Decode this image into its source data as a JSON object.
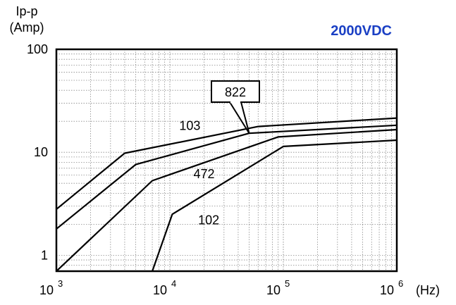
{
  "chart_data": {
    "type": "line",
    "title": "2000VDC",
    "title_color": "#1a3fc4",
    "ylabel_lines": [
      "Ip-p",
      "(Amp)"
    ],
    "xunit": "(Hz)",
    "x_scale": "log",
    "y_scale": "log",
    "xlim": [
      1000,
      1000000
    ],
    "ylim": [
      0.7,
      100
    ],
    "x_ticks": [
      {
        "value": 1000,
        "base": "10",
        "exp": "3"
      },
      {
        "value": 10000,
        "base": "10",
        "exp": "4"
      },
      {
        "value": 100000,
        "base": "10",
        "exp": "5"
      },
      {
        "value": 1000000,
        "base": "10",
        "exp": "6"
      }
    ],
    "y_ticks": [
      {
        "value": 1,
        "label": "1"
      },
      {
        "value": 10,
        "label": "10"
      },
      {
        "value": 100,
        "label": "100"
      }
    ],
    "grid": true,
    "series": [
      {
        "name": "103",
        "x": [
          1000,
          4000,
          60000,
          1000000
        ],
        "y": [
          2.8,
          9.8,
          17.8,
          21.5
        ]
      },
      {
        "name": "822",
        "x": [
          1000,
          5000,
          50000,
          1000000
        ],
        "y": [
          1.8,
          7.6,
          15.3,
          18.3
        ]
      },
      {
        "name": "472",
        "x": [
          1000,
          7000,
          90000,
          1000000
        ],
        "y": [
          0.7,
          5.3,
          14.1,
          16.6
        ]
      },
      {
        "name": "102",
        "x": [
          7000,
          10500,
          100000,
          1000000
        ],
        "y": [
          0.7,
          2.5,
          11.4,
          13.1
        ]
      }
    ],
    "annotations": [
      {
        "text": "822",
        "type": "callout",
        "series": "822",
        "x": 50000,
        "y": 15.3
      },
      {
        "text": "103",
        "type": "label",
        "x": 15000,
        "y": 16.5
      },
      {
        "text": "472",
        "type": "label",
        "x": 20000,
        "y": 5.6
      },
      {
        "text": "102",
        "type": "label",
        "x": 22000,
        "y": 2.0
      }
    ]
  }
}
